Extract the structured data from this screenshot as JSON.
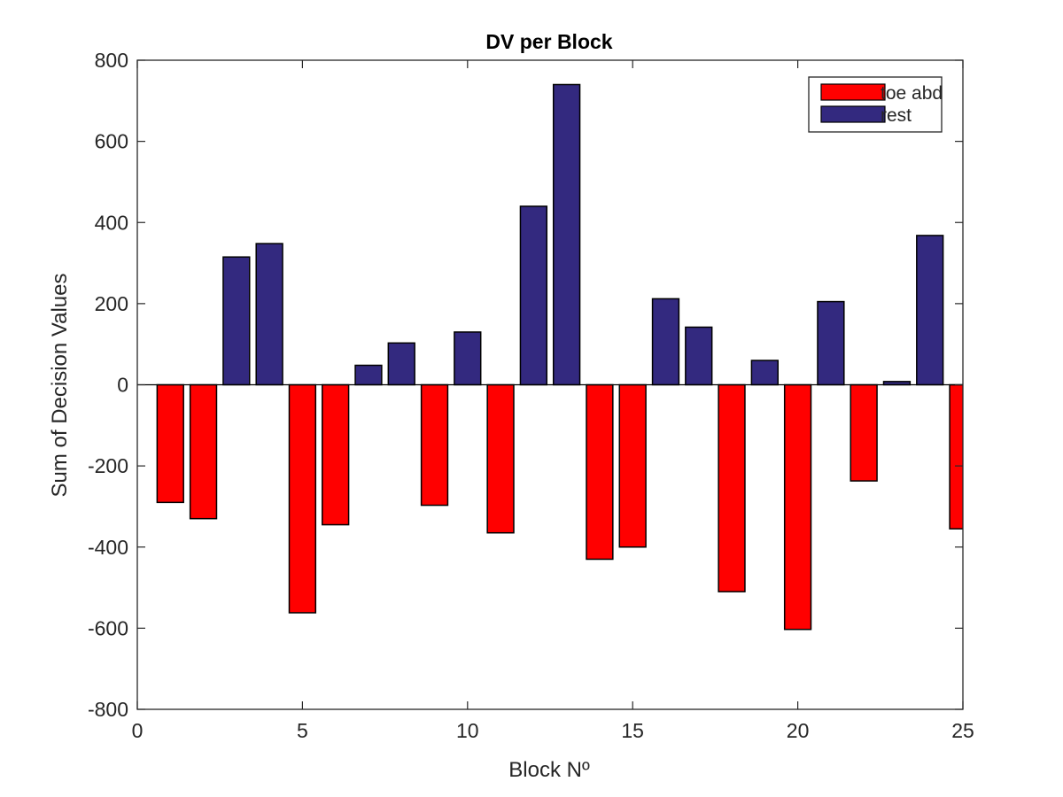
{
  "chart_data": {
    "type": "bar",
    "title": "DV per Block",
    "xlabel": "Block Nº",
    "ylabel": "Sum of Decision Values",
    "xlim": [
      0,
      25
    ],
    "ylim": [
      -800,
      800
    ],
    "xticks": [
      0,
      5,
      10,
      15,
      20,
      25
    ],
    "yticks": [
      -800,
      -600,
      -400,
      -200,
      0,
      200,
      400,
      600,
      800
    ],
    "grid": false,
    "legend_position": "top-right",
    "bar_width": 0.8,
    "series": [
      {
        "name": "toe abd",
        "color": "#ff0000",
        "points": [
          {
            "x": 1,
            "y": -290
          },
          {
            "x": 2,
            "y": -330
          },
          {
            "x": 5,
            "y": -562
          },
          {
            "x": 6,
            "y": -345
          },
          {
            "x": 9,
            "y": -297
          },
          {
            "x": 11,
            "y": -365
          },
          {
            "x": 14,
            "y": -430
          },
          {
            "x": 15,
            "y": -400
          },
          {
            "x": 18,
            "y": -510
          },
          {
            "x": 20,
            "y": -603
          },
          {
            "x": 22,
            "y": -237
          },
          {
            "x": 25,
            "y": -355
          }
        ]
      },
      {
        "name": "rest",
        "color": "#33297f",
        "points": [
          {
            "x": 3,
            "y": 315
          },
          {
            "x": 4,
            "y": 348
          },
          {
            "x": 7,
            "y": 48
          },
          {
            "x": 8,
            "y": 103
          },
          {
            "x": 10,
            "y": 130
          },
          {
            "x": 12,
            "y": 440
          },
          {
            "x": 13,
            "y": 740
          },
          {
            "x": 16,
            "y": 212
          },
          {
            "x": 17,
            "y": 142
          },
          {
            "x": 19,
            "y": 60
          },
          {
            "x": 21,
            "y": 205
          },
          {
            "x": 23,
            "y": 8
          },
          {
            "x": 24,
            "y": 368
          }
        ]
      }
    ]
  }
}
